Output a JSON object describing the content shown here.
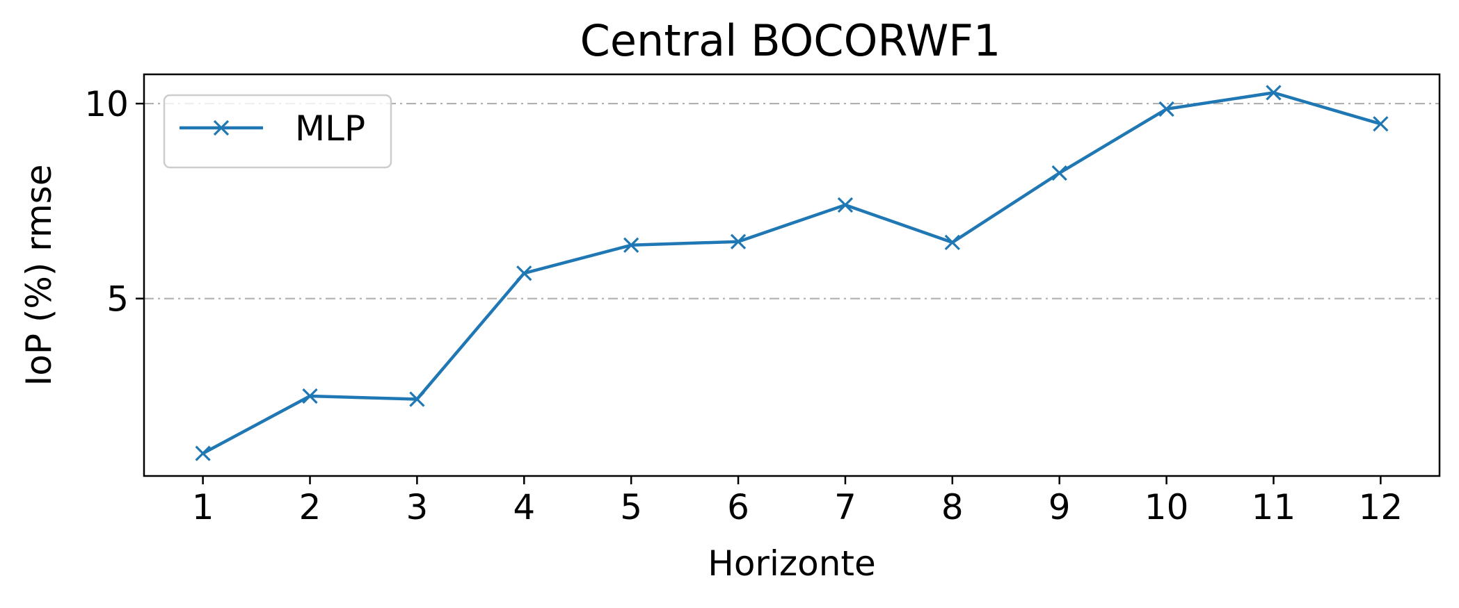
{
  "chart_data": {
    "type": "line",
    "title": "Central BOCORWF1",
    "xlabel": "Horizonte",
    "ylabel": "IoP (%) rmse",
    "x": [
      1,
      2,
      3,
      4,
      5,
      6,
      7,
      8,
      9,
      10,
      11,
      12
    ],
    "xticks": [
      "1",
      "2",
      "3",
      "4",
      "5",
      "6",
      "7",
      "8",
      "9",
      "10",
      "11",
      "12"
    ],
    "xlim": [
      0.45,
      12.55
    ],
    "ylim": [
      0.45,
      10.75
    ],
    "yticks": [
      5,
      10
    ],
    "ytick_labels": [
      "5",
      "10"
    ],
    "grid": "y",
    "legend": "top-left",
    "series": [
      {
        "name": "MLP",
        "color": "#1f77b4",
        "marker": "x",
        "values": [
          1.03,
          2.5,
          2.42,
          5.65,
          6.37,
          6.46,
          7.4,
          6.44,
          8.22,
          9.86,
          10.28,
          9.48
        ]
      }
    ]
  }
}
